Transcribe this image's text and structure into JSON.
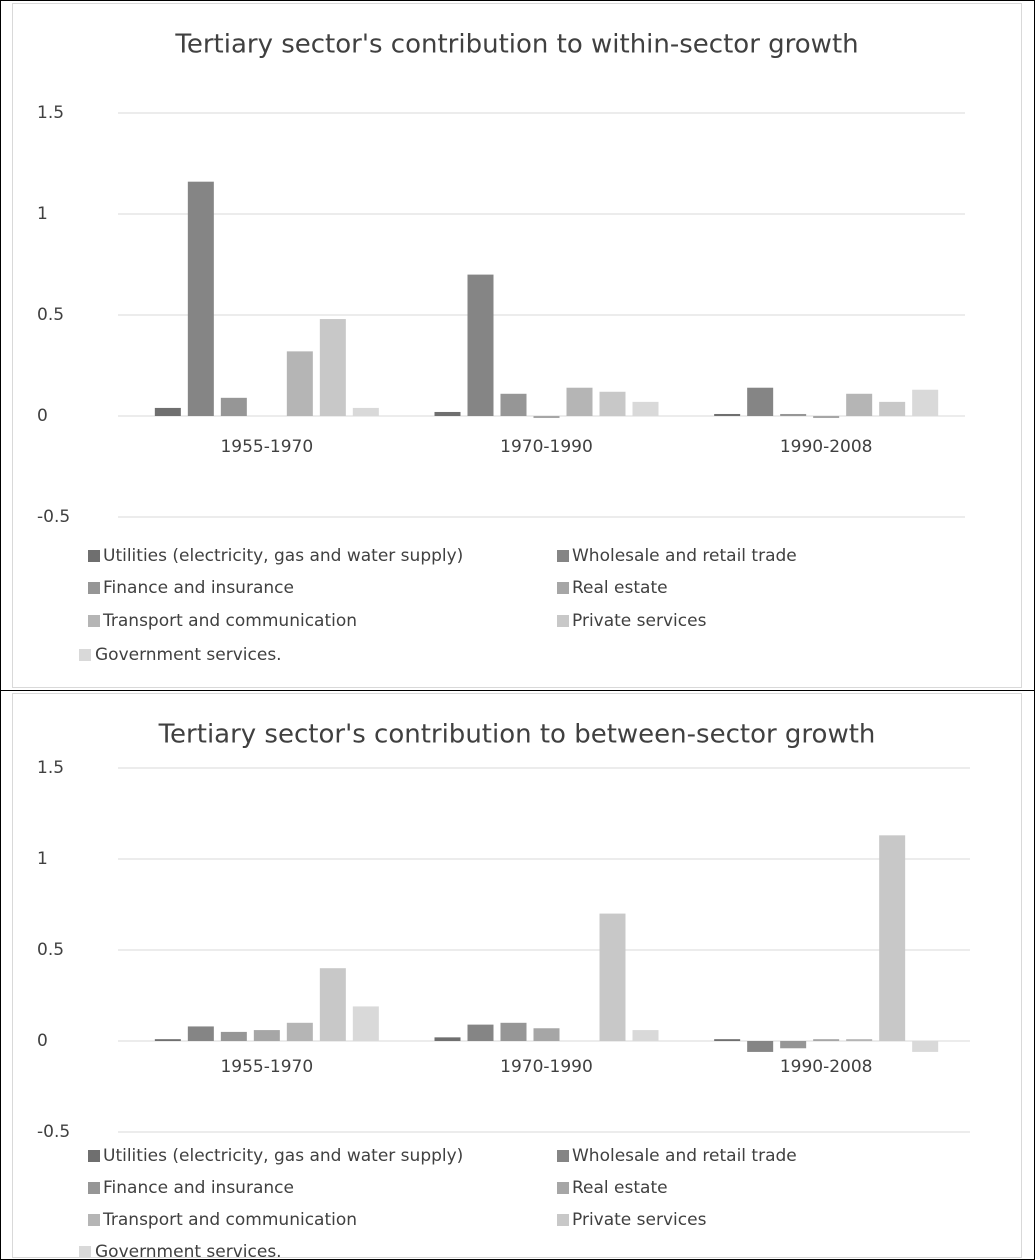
{
  "chart_data": [
    {
      "type": "bar",
      "title": "Tertiary sector's contribution to within-sector growth",
      "categories": [
        "1955-1970",
        "1970-1990",
        "1990-2008"
      ],
      "series": [
        {
          "name": "Utilities (electricity, gas and water supply)",
          "color": "#6f6f6f",
          "values": [
            0.04,
            0.02,
            0.01
          ]
        },
        {
          "name": "Wholesale and retail trade",
          "color": "#858585",
          "values": [
            1.16,
            0.7,
            0.14
          ]
        },
        {
          "name": "Finance and insurance",
          "color": "#969696",
          "values": [
            0.09,
            0.11,
            0.01
          ]
        },
        {
          "name": "Real estate",
          "color": "#a6a6a6",
          "values": [
            0,
            -0.01,
            -0.01
          ]
        },
        {
          "name": "Transport and communication",
          "color": "#b5b5b5",
          "values": [
            0.32,
            0.14,
            0.11
          ]
        },
        {
          "name": "Private services",
          "color": "#c8c8c8",
          "values": [
            0.48,
            0.12,
            0.07
          ]
        },
        {
          "name": "Government services.",
          "color": "#d9d9d9",
          "values": [
            0.04,
            0.07,
            0.13
          ]
        }
      ],
      "ylim": [
        -0.5,
        1.5
      ],
      "yticks": [
        -0.5,
        0,
        0.5,
        1,
        1.5
      ],
      "grid": true,
      "legend": "bottom"
    },
    {
      "type": "bar",
      "title": "Tertiary sector's contribution to between-sector growth",
      "categories": [
        "1955-1970",
        "1970-1990",
        "1990-2008"
      ],
      "series": [
        {
          "name": "Utilities (electricity, gas and water supply)",
          "color": "#6f6f6f",
          "values": [
            0.01,
            0.02,
            0.01
          ]
        },
        {
          "name": "Wholesale and retail trade",
          "color": "#858585",
          "values": [
            0.08,
            0.09,
            -0.06
          ]
        },
        {
          "name": "Finance and insurance",
          "color": "#969696",
          "values": [
            0.05,
            0.1,
            -0.04
          ]
        },
        {
          "name": "Real estate",
          "color": "#a6a6a6",
          "values": [
            0.06,
            0.07,
            0.01
          ]
        },
        {
          "name": "Transport and communication",
          "color": "#b5b5b5",
          "values": [
            0.1,
            0,
            0.01
          ]
        },
        {
          "name": "Private services",
          "color": "#c8c8c8",
          "values": [
            0.4,
            0.7,
            1.13
          ]
        },
        {
          "name": "Government services.",
          "color": "#d9d9d9",
          "values": [
            0.19,
            0.06,
            -0.06
          ]
        }
      ],
      "ylim": [
        -0.5,
        1.5
      ],
      "yticks": [
        -0.5,
        0,
        0.5,
        1,
        1.5
      ],
      "grid": true,
      "legend": "bottom"
    }
  ]
}
